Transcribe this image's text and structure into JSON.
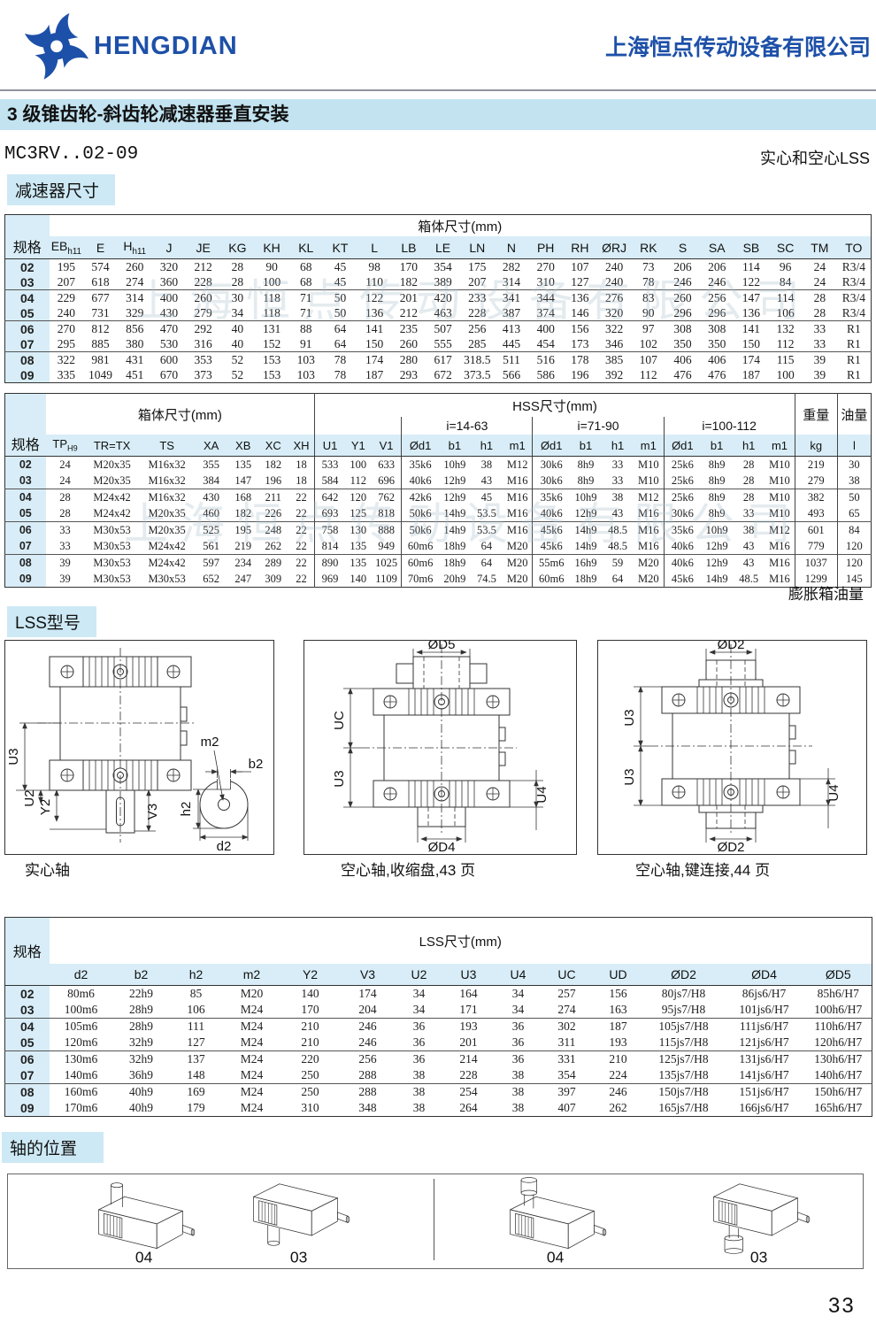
{
  "header": {
    "brand": "HENGDIAN",
    "company": "上海恒点传动设备有限公司"
  },
  "title_bar": "3 级锥齿轮-斜齿轮减速器垂直安装",
  "model": "MC3RV..02-09",
  "shaft_note": "实心和空心LSS",
  "section_labels": {
    "dims": "减速器尺寸",
    "lss": "LSS型号",
    "positions": "轴的位置"
  },
  "watermark": "上海恒点传动设备有限公司",
  "page_number": "33",
  "colors": {
    "brand_blue": "#1d50a8",
    "banner_blue": "#c3e3f1",
    "header_band_blue": "#d8edf7"
  },
  "table1": {
    "spec_header": "规格",
    "group_header": "箱体尺寸(mm)",
    "columns": [
      "EB|h11",
      "E",
      "H|h11",
      "J",
      "JE",
      "KG",
      "KH",
      "KL",
      "KT",
      "L",
      "LB",
      "LE",
      "LN",
      "N",
      "PH",
      "RH",
      "ØRJ",
      "RK",
      "S",
      "SA",
      "SB",
      "SC",
      "TM",
      "TO"
    ],
    "rows": [
      [
        "02",
        "195",
        "574",
        "260",
        "320",
        "212",
        "28",
        "90",
        "68",
        "45",
        "98",
        "170",
        "354",
        "175",
        "282",
        "270",
        "107",
        "240",
        "73",
        "206",
        "206",
        "114",
        "96",
        "24",
        "R3/4"
      ],
      [
        "03",
        "207",
        "618",
        "274",
        "360",
        "228",
        "28",
        "100",
        "68",
        "45",
        "110",
        "182",
        "389",
        "207",
        "314",
        "310",
        "127",
        "240",
        "78",
        "246",
        "246",
        "122",
        "84",
        "24",
        "R3/4"
      ],
      [
        "04",
        "229",
        "677",
        "314",
        "400",
        "260",
        "30",
        "118",
        "71",
        "50",
        "122",
        "201",
        "420",
        "233",
        "341",
        "344",
        "136",
        "276",
        "83",
        "260",
        "256",
        "147",
        "114",
        "28",
        "R3/4"
      ],
      [
        "05",
        "240",
        "731",
        "329",
        "430",
        "279",
        "34",
        "118",
        "71",
        "50",
        "136",
        "212",
        "463",
        "228",
        "387",
        "374",
        "146",
        "320",
        "90",
        "296",
        "296",
        "136",
        "106",
        "28",
        "R3/4"
      ],
      [
        "06",
        "270",
        "812",
        "856",
        "470",
        "292",
        "40",
        "131",
        "88",
        "64",
        "141",
        "235",
        "507",
        "256",
        "413",
        "400",
        "156",
        "322",
        "97",
        "308",
        "308",
        "141",
        "132",
        "33",
        "R1"
      ],
      [
        "07",
        "295",
        "885",
        "380",
        "530",
        "316",
        "40",
        "152",
        "91",
        "64",
        "150",
        "260",
        "555",
        "285",
        "445",
        "454",
        "173",
        "346",
        "102",
        "350",
        "350",
        "150",
        "112",
        "33",
        "R1"
      ],
      [
        "08",
        "322",
        "981",
        "431",
        "600",
        "353",
        "52",
        "153",
        "103",
        "78",
        "174",
        "280",
        "617",
        "318.5",
        "511",
        "516",
        "178",
        "385",
        "107",
        "406",
        "406",
        "174",
        "115",
        "39",
        "R1"
      ],
      [
        "09",
        "335",
        "1049",
        "451",
        "670",
        "373",
        "52",
        "153",
        "103",
        "78",
        "187",
        "293",
        "672",
        "373.5",
        "566",
        "586",
        "196",
        "392",
        "112",
        "476",
        "476",
        "187",
        "100",
        "39",
        "R1"
      ]
    ]
  },
  "table2": {
    "spec_header": "规格",
    "group_headers": {
      "box": "箱体尺寸(mm)",
      "hss": "HSS尺寸(mm)",
      "weight": "重量",
      "oil": "油量"
    },
    "i_headers": [
      "i=14-63",
      "i=71-90",
      "i=100-112"
    ],
    "columns": [
      "TP|H9",
      "TR=TX",
      "TS",
      "XA",
      "XB",
      "XC",
      "XH",
      "U1",
      "Y1",
      "V1",
      "Ød1",
      "b1",
      "h1",
      "m1",
      "Ød1",
      "b1",
      "h1",
      "m1",
      "Ød1",
      "b1",
      "h1",
      "m1",
      "kg",
      "l"
    ],
    "rows": [
      [
        "02",
        "24",
        "M20x35",
        "M16x32",
        "355",
        "135",
        "182",
        "18",
        "533",
        "100",
        "633",
        "35k6",
        "10h9",
        "38",
        "M12",
        "30k6",
        "8h9",
        "33",
        "M10",
        "25k6",
        "8h9",
        "28",
        "M10",
        "219",
        "30"
      ],
      [
        "03",
        "24",
        "M20x35",
        "M16x32",
        "384",
        "147",
        "196",
        "18",
        "584",
        "112",
        "696",
        "40k6",
        "12h9",
        "43",
        "M16",
        "30k6",
        "8h9",
        "33",
        "M10",
        "25k6",
        "8h9",
        "28",
        "M10",
        "279",
        "38"
      ],
      [
        "04",
        "28",
        "M24x42",
        "M16x32",
        "430",
        "168",
        "211",
        "22",
        "642",
        "120",
        "762",
        "42k6",
        "12h9",
        "45",
        "M16",
        "35k6",
        "10h9",
        "38",
        "M12",
        "25k6",
        "8h9",
        "28",
        "M10",
        "382",
        "50"
      ],
      [
        "05",
        "28",
        "M24x42",
        "M20x35",
        "460",
        "182",
        "226",
        "22",
        "693",
        "125",
        "818",
        "50k6",
        "14h9",
        "53.5",
        "M16",
        "40k6",
        "12h9",
        "43",
        "M16",
        "30k6",
        "8h9",
        "33",
        "M10",
        "493",
        "65"
      ],
      [
        "06",
        "33",
        "M30x53",
        "M20x35",
        "525",
        "195",
        "248",
        "22",
        "758",
        "130",
        "888",
        "50k6",
        "14h9",
        "53.5",
        "M16",
        "45k6",
        "14h9",
        "48.5",
        "M16",
        "35k6",
        "10h9",
        "38",
        "M12",
        "601",
        "84"
      ],
      [
        "07",
        "33",
        "M30x53",
        "M24x42",
        "561",
        "219",
        "262",
        "22",
        "814",
        "135",
        "949",
        "60m6",
        "18h9",
        "64",
        "M20",
        "45k6",
        "14h9",
        "48.5",
        "M16",
        "40k6",
        "12h9",
        "43",
        "M16",
        "779",
        "120"
      ],
      [
        "08",
        "39",
        "M30x53",
        "M24x42",
        "597",
        "234",
        "289",
        "22",
        "890",
        "135",
        "1025",
        "60m6",
        "18h9",
        "64",
        "M20",
        "55m6",
        "16h9",
        "59",
        "M20",
        "40k6",
        "12h9",
        "43",
        "M16",
        "1037",
        "120"
      ],
      [
        "09",
        "39",
        "M30x53",
        "M30x53",
        "652",
        "247",
        "309",
        "22",
        "969",
        "140",
        "1109",
        "70m6",
        "20h9",
        "74.5",
        "M20",
        "60m6",
        "18h9",
        "64",
        "M20",
        "45k6",
        "14h9",
        "48.5",
        "M16",
        "1299",
        "145"
      ]
    ],
    "footnote": "膨胀箱油量"
  },
  "drawings": {
    "solid": {
      "caption": "实心轴",
      "u3": "U3",
      "u2": "U2",
      "y2": "Y2",
      "v3": "V3",
      "m2": "m2",
      "b2": "b2",
      "h2": "h2",
      "d2": "d2"
    },
    "shrink": {
      "caption": "空心轴,收缩盘,43 页",
      "d5": "ØD5",
      "uc": "UC",
      "u3": "U3",
      "u4": "U4",
      "d4": "ØD4"
    },
    "keyed": {
      "caption": "空心轴,键连接,44 页",
      "d2_top": "ØD2",
      "u3_upper": "U3",
      "u3_lower": "U3",
      "u4": "U4",
      "d2_bottom": "ØD2"
    }
  },
  "table3": {
    "spec_header": "规格",
    "group_header": "LSS尺寸(mm)",
    "columns": [
      "d2",
      "b2",
      "h2",
      "m2",
      "Y2",
      "V3",
      "U2",
      "U3",
      "U4",
      "UC",
      "UD",
      "ØD2",
      "ØD4",
      "ØD5"
    ],
    "rows": [
      [
        "02",
        "80m6",
        "22h9",
        "85",
        "M20",
        "140",
        "174",
        "34",
        "164",
        "34",
        "257",
        "156",
        "80js7/H8",
        "86js6/H7",
        "85h6/H7"
      ],
      [
        "03",
        "100m6",
        "28h9",
        "106",
        "M24",
        "170",
        "204",
        "34",
        "171",
        "34",
        "274",
        "163",
        "95js7/H8",
        "101js6/H7",
        "100h6/H7"
      ],
      [
        "04",
        "105m6",
        "28h9",
        "111",
        "M24",
        "210",
        "246",
        "36",
        "193",
        "36",
        "302",
        "187",
        "105js7/H8",
        "111js6/H7",
        "110h6/H7"
      ],
      [
        "05",
        "120m6",
        "32h9",
        "127",
        "M24",
        "210",
        "246",
        "36",
        "201",
        "36",
        "311",
        "193",
        "115js7/H8",
        "121js6/H7",
        "120h6/H7"
      ],
      [
        "06",
        "130m6",
        "32h9",
        "137",
        "M24",
        "220",
        "256",
        "36",
        "214",
        "36",
        "331",
        "210",
        "125js7/H8",
        "131js6/H7",
        "130h6/H7"
      ],
      [
        "07",
        "140m6",
        "36h9",
        "148",
        "M24",
        "250",
        "288",
        "38",
        "228",
        "38",
        "354",
        "224",
        "135js7/H8",
        "141js6/H7",
        "140h6/H7"
      ],
      [
        "08",
        "160m6",
        "40h9",
        "169",
        "M24",
        "250",
        "288",
        "38",
        "254",
        "38",
        "397",
        "246",
        "150js7/H8",
        "151js6/H7",
        "150h6/H7"
      ],
      [
        "09",
        "170m6",
        "40h9",
        "179",
        "M24",
        "310",
        "348",
        "38",
        "264",
        "38",
        "407",
        "262",
        "165js7/H8",
        "166js6/H7",
        "165h6/H7"
      ]
    ]
  },
  "positions": {
    "labels": [
      "04",
      "03",
      "04",
      "03"
    ]
  }
}
